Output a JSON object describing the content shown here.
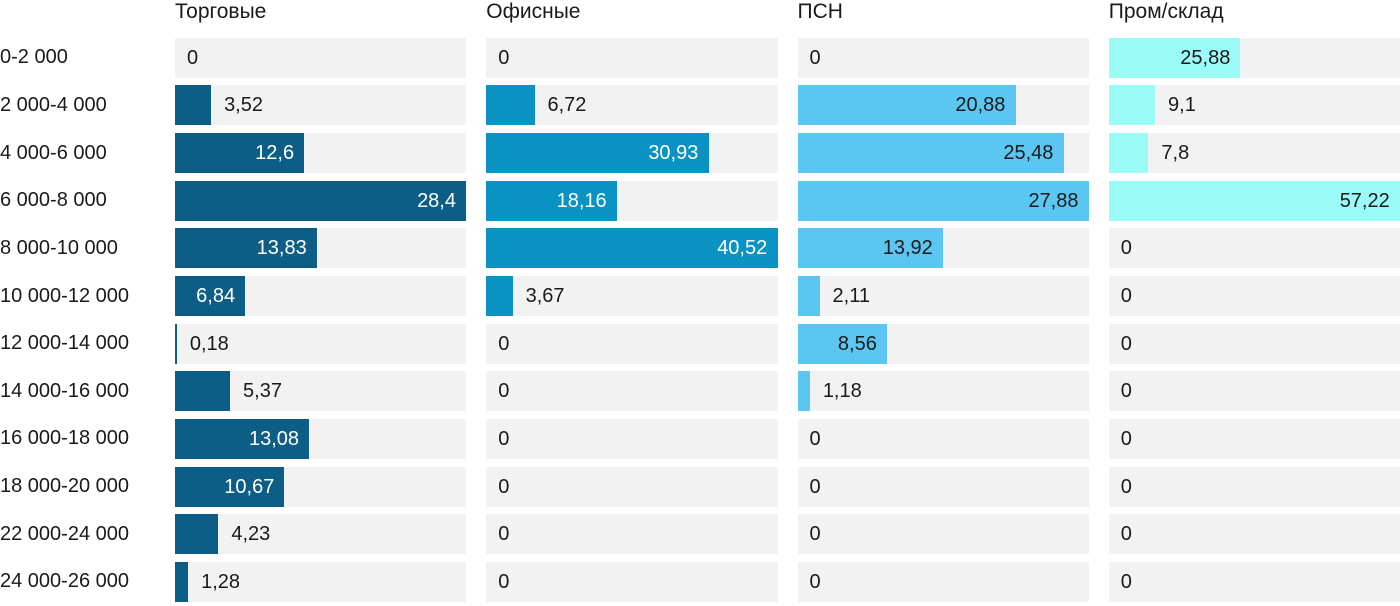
{
  "chart_data": {
    "type": "bar",
    "orientation": "horizontal",
    "scale": "independent per column, bar width relative to column max",
    "decimal_separator": ",",
    "track_color": "#f2f2f2",
    "text_color": "#1a1a1a",
    "categories": [
      "0-2 000",
      "2 000-4 000",
      "4 000-6 000",
      "6 000-8 000",
      "8 000-10 000",
      "10 000-12 000",
      "12 000-14 000",
      "14 000-16 000",
      "16 000-18 000",
      "18 000-20 000",
      "22 000-24 000",
      "24 000-26 000"
    ],
    "series": [
      {
        "name": "Торговые",
        "color": "#0d5e86",
        "label_color_inside": "#ffffff",
        "values": [
          0,
          3.52,
          12.6,
          28.4,
          13.83,
          6.84,
          0.18,
          5.37,
          13.08,
          10.67,
          4.23,
          1.28
        ]
      },
      {
        "name": "Офисные",
        "color": "#0a93c2",
        "label_color_inside": "#ffffff",
        "values": [
          0,
          6.72,
          30.93,
          18.16,
          40.52,
          3.67,
          0,
          0,
          0,
          0,
          0,
          0
        ]
      },
      {
        "name": "ПСН",
        "color": "#5cc6f2",
        "label_color_inside": "#1a1a1a",
        "values": [
          0,
          20.88,
          25.48,
          27.88,
          13.92,
          2.11,
          8.56,
          1.18,
          0,
          0,
          0,
          0
        ]
      },
      {
        "name": "Пром/склад",
        "color": "#9bfbf6",
        "label_color_inside": "#1a1a1a",
        "values": [
          25.88,
          9.1,
          7.8,
          57.22,
          0,
          0,
          0,
          0,
          0,
          0,
          0,
          0
        ]
      }
    ]
  }
}
